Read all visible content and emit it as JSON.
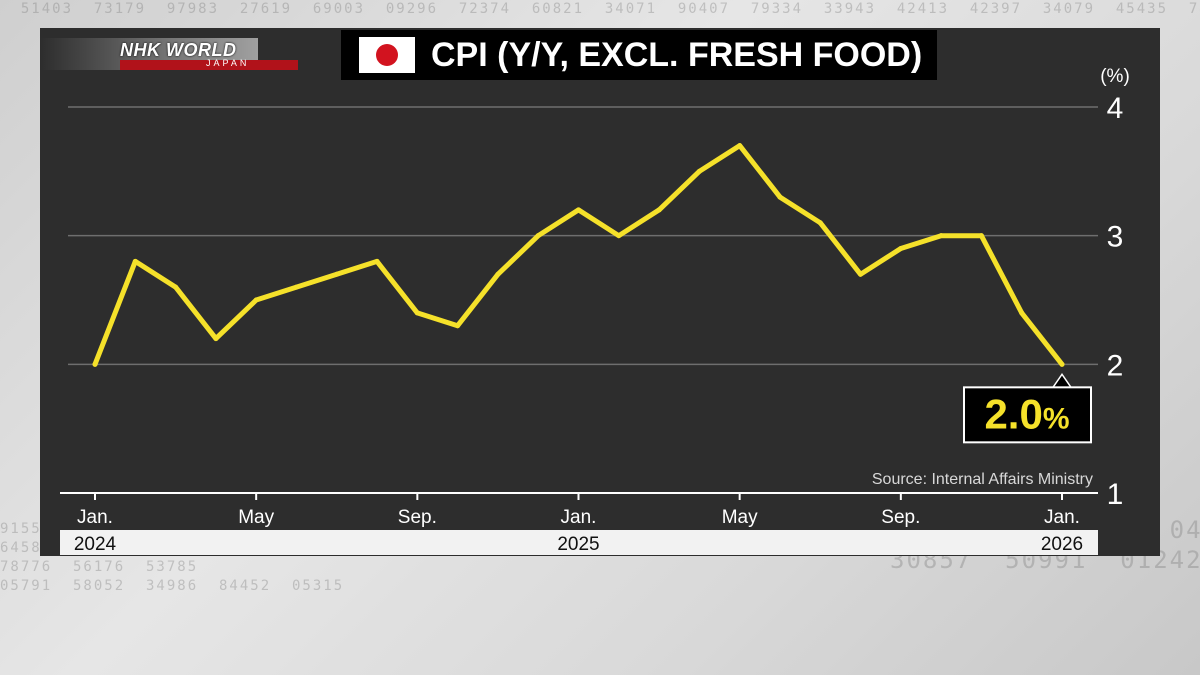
{
  "channel": {
    "brand": "NHK WORLD",
    "sub": "JAPAN"
  },
  "title": "CPI (Y/Y, EXCL. FRESH FOOD)",
  "flag_icon": "japan-flag-icon",
  "colors": {
    "line": "#f5e12a",
    "panel": "#2d2d2d",
    "title_bg": "#000000",
    "flag_red": "#d2131f"
  },
  "chart_data": {
    "type": "line",
    "title": "CPI (Y/Y, EXCL. FRESH FOOD)",
    "unit": "(%)",
    "ylim": [
      1,
      4
    ],
    "yticks": [
      "1",
      "2",
      "3",
      "4"
    ],
    "grid": "horizontal",
    "x": [
      "2024-01",
      "2024-02",
      "2024-03",
      "2024-04",
      "2024-05",
      "2024-06",
      "2024-07",
      "2024-08",
      "2024-09",
      "2024-10",
      "2024-11",
      "2024-12",
      "2025-01",
      "2025-02",
      "2025-03",
      "2025-04",
      "2025-05",
      "2025-06",
      "2025-07",
      "2025-08",
      "2025-09",
      "2025-10",
      "2025-11",
      "2025-12",
      "2026-01"
    ],
    "values": [
      2.0,
      2.8,
      2.6,
      2.2,
      2.5,
      2.6,
      2.7,
      2.8,
      2.4,
      2.3,
      2.7,
      3.0,
      3.2,
      3.0,
      3.2,
      3.5,
      3.7,
      3.3,
      3.1,
      2.7,
      2.9,
      3.0,
      3.0,
      2.4,
      2.0
    ],
    "xtick_labels": [
      {
        "label": "Jan.",
        "index": 0
      },
      {
        "label": "May",
        "index": 4
      },
      {
        "label": "Sep.",
        "index": 8
      },
      {
        "label": "Jan.",
        "index": 12
      },
      {
        "label": "May",
        "index": 16
      },
      {
        "label": "Sep.",
        "index": 20
      },
      {
        "label": "Jan.",
        "index": 24
      }
    ],
    "year_labels": [
      {
        "label": "2024",
        "index": 0
      },
      {
        "label": "2025",
        "index": 12
      },
      {
        "label": "2026",
        "index": 24
      }
    ],
    "callout": {
      "number": "2.0",
      "unit": "%",
      "index": 24
    },
    "source": "Source: Internal Affairs Ministry"
  }
}
